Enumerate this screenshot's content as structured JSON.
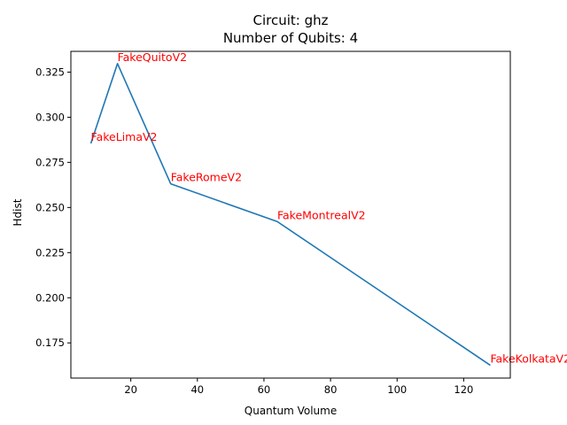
{
  "chart_data": {
    "type": "line",
    "title": "Circuit: ghz",
    "subtitle": "Number of Qubits: 4",
    "xlabel": "Quantum Volume",
    "ylabel": "Hdist",
    "xlim": [
      2,
      134
    ],
    "ylim": [
      0.1555,
      0.3365
    ],
    "xticks": [
      20,
      40,
      60,
      80,
      100,
      120
    ],
    "yticks": [
      0.175,
      0.2,
      0.225,
      0.25,
      0.275,
      0.3,
      0.325
    ],
    "ytick_labels": [
      "0.175",
      "0.200",
      "0.225",
      "0.250",
      "0.275",
      "0.300",
      "0.325"
    ],
    "grid": false,
    "legend": "none",
    "line_color": "#1f77b4",
    "label_color": "#ff0000",
    "points": [
      {
        "x": 8,
        "y": 0.2855,
        "label": "FakeLimaV2"
      },
      {
        "x": 16,
        "y": 0.3297,
        "label": "FakeQuitoV2"
      },
      {
        "x": 32,
        "y": 0.2631,
        "label": "FakeRomeV2"
      },
      {
        "x": 64,
        "y": 0.2422,
        "label": "FakeMontrealV2"
      },
      {
        "x": 128,
        "y": 0.1626,
        "label": "FakeKolkataV2"
      }
    ]
  }
}
